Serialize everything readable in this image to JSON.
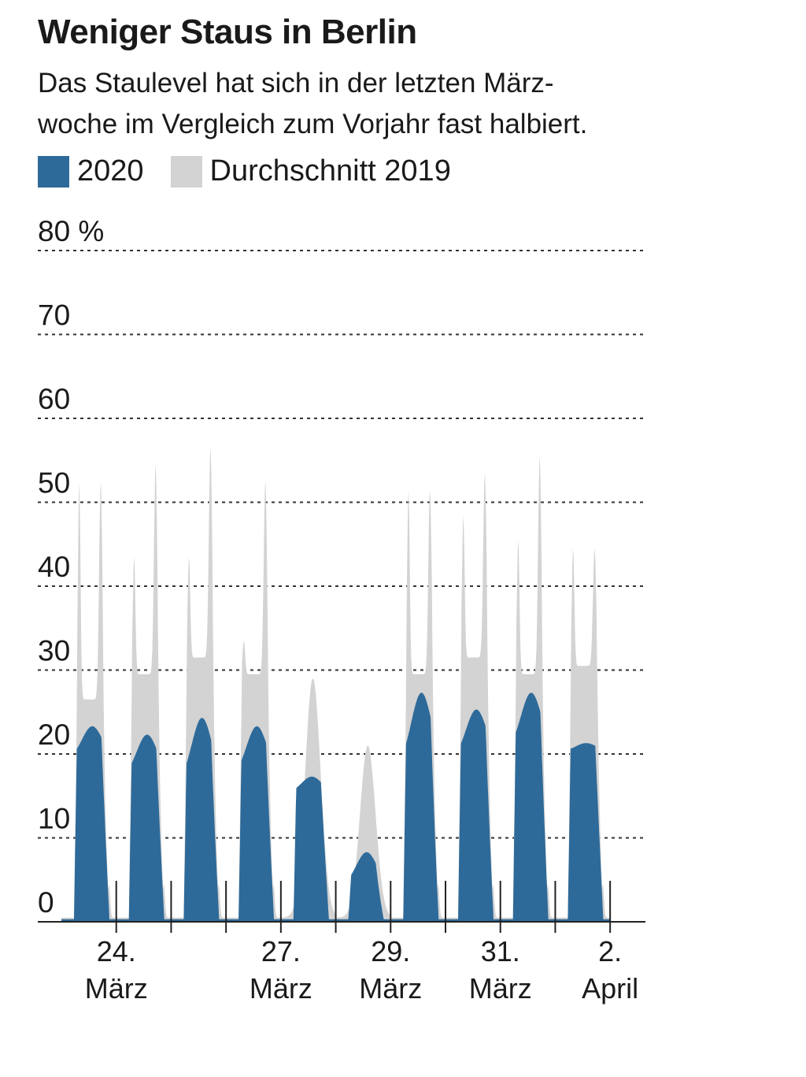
{
  "chart_data": {
    "type": "area",
    "title": "Weniger Staus in Berlin",
    "subtitle_lines": [
      "Das Staulevel hat sich in der letzten März-",
      "woche im Vergleich zum Vorjahr fast halbiert."
    ],
    "y_unit": "%",
    "ylim": [
      0,
      80
    ],
    "y_ticks": [
      {
        "value": 80,
        "label": "80 %"
      },
      {
        "value": 70,
        "label": "70"
      },
      {
        "value": 60,
        "label": "60"
      },
      {
        "value": 50,
        "label": "50"
      },
      {
        "value": 40,
        "label": "40"
      },
      {
        "value": 30,
        "label": "30"
      },
      {
        "value": 20,
        "label": "20"
      },
      {
        "value": 10,
        "label": "10"
      },
      {
        "value": 0,
        "label": "0"
      }
    ],
    "grid": true,
    "x_range": [
      "2020-03-23",
      "2020-04-02 12:00"
    ],
    "x_ticks": [
      {
        "day": 1,
        "line1": "24.",
        "line2": "März"
      },
      {
        "day": 4,
        "line1": "27.",
        "line2": "März"
      },
      {
        "day": 6,
        "line1": "29.",
        "line2": "März"
      },
      {
        "day": 8,
        "line1": "31.",
        "line2": "März"
      },
      {
        "day": 10,
        "line1": "2.",
        "line2": "April"
      }
    ],
    "day_marks": [
      1,
      2,
      3,
      4,
      5,
      6,
      7,
      8,
      9,
      10
    ],
    "series": [
      {
        "name": "Durchschnitt 2019",
        "color": "#d3d3d3",
        "daily_profiles": [
          {
            "date": "2020-03-23",
            "morning_peak": 56,
            "evening_peak": 56,
            "midday": 30,
            "night": 0.5
          },
          {
            "date": "2020-03-24",
            "morning_peak": 47,
            "evening_peak": 58,
            "midday": 33,
            "night": 0.5
          },
          {
            "date": "2020-03-25",
            "morning_peak": 47,
            "evening_peak": 60,
            "midday": 35,
            "night": 0.5
          },
          {
            "date": "2020-03-26",
            "morning_peak": 37,
            "evening_peak": 56,
            "midday": 33,
            "night": 0.5
          },
          {
            "date": "2020-03-27",
            "morning_peak": 29,
            "evening_peak": 30,
            "midday": 29,
            "night": 0.5
          },
          {
            "date": "2020-03-28",
            "morning_peak": 22,
            "evening_peak": 22,
            "midday": 21,
            "night": 0.5
          },
          {
            "date": "2020-03-29",
            "morning_peak": 55,
            "evening_peak": 55,
            "midday": 33,
            "night": 0.5
          },
          {
            "date": "2020-03-30",
            "morning_peak": 52,
            "evening_peak": 57,
            "midday": 35,
            "night": 0.5
          },
          {
            "date": "2020-03-31",
            "morning_peak": 49,
            "evening_peak": 59,
            "midday": 33,
            "night": 0.5
          },
          {
            "date": "2020-04-01",
            "morning_peak": 48,
            "evening_peak": 48,
            "midday": 34,
            "night": 0.5
          }
        ]
      },
      {
        "name": "2020",
        "color": "#2e6a99",
        "daily_profiles": [
          {
            "date": "2020-03-23",
            "peak": 23,
            "start": 19,
            "night": 0.3
          },
          {
            "date": "2020-03-24",
            "peak": 22,
            "start": 17,
            "night": 0.3
          },
          {
            "date": "2020-03-25",
            "peak": 24,
            "start": 16,
            "night": 0.3
          },
          {
            "date": "2020-03-26",
            "peak": 23,
            "start": 17,
            "night": 0.3
          },
          {
            "date": "2020-03-27",
            "peak": 17,
            "start": 15,
            "night": 0.3
          },
          {
            "date": "2020-03-28",
            "peak": 8,
            "start": 4,
            "night": 0.3
          },
          {
            "date": "2020-03-29",
            "peak": 27,
            "start": 18,
            "night": 0.3
          },
          {
            "date": "2020-03-30",
            "peak": 25,
            "start": 19,
            "night": 0.3
          },
          {
            "date": "2020-03-31",
            "peak": 27,
            "start": 20,
            "night": 0.3
          },
          {
            "date": "2020-04-01",
            "peak": 21,
            "start": 20,
            "night": 0.3
          }
        ]
      }
    ]
  }
}
